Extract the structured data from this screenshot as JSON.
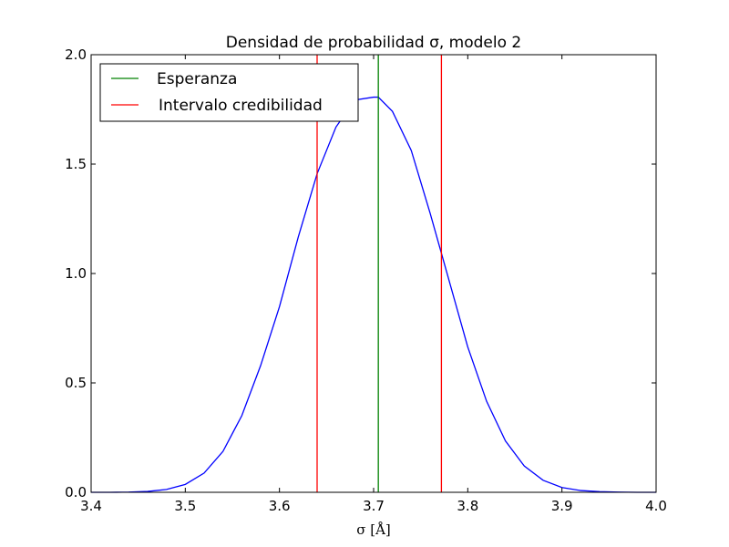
{
  "chart_data": {
    "type": "line",
    "title": "Densidad de probabilidad σ, modelo 2",
    "xlabel": "σ [Å]",
    "ylabel": "",
    "xlim": [
      3.4,
      4.0
    ],
    "ylim": [
      0.0,
      2.0
    ],
    "x_ticks": [
      "3.4",
      "3.5",
      "3.6",
      "3.7",
      "3.8",
      "3.9",
      "4.0"
    ],
    "y_ticks": [
      "0.0",
      "0.5",
      "1.0",
      "1.5",
      "2.0"
    ],
    "grid": false,
    "legend_position": "top-left",
    "density": {
      "color": "#0000ff",
      "x": [
        3.4,
        3.42,
        3.44,
        3.46,
        3.48,
        3.5,
        3.52,
        3.54,
        3.56,
        3.58,
        3.6,
        3.62,
        3.64,
        3.66,
        3.68,
        3.7,
        3.705,
        3.72,
        3.74,
        3.76,
        3.78,
        3.8,
        3.82,
        3.84,
        3.86,
        3.88,
        3.9,
        3.92,
        3.94,
        3.96,
        3.98,
        4.0
      ],
      "y": [
        0.0,
        0.0,
        0.001,
        0.004,
        0.013,
        0.036,
        0.088,
        0.187,
        0.35,
        0.579,
        0.848,
        1.167,
        1.456,
        1.669,
        1.793,
        1.806,
        1.806,
        1.741,
        1.562,
        1.276,
        0.97,
        0.664,
        0.416,
        0.235,
        0.12,
        0.055,
        0.022,
        0.008,
        0.003,
        0.001,
        0.0,
        0.0
      ]
    },
    "series": [
      {
        "name": "Esperanza",
        "color": "#008000",
        "x_values": [
          3.705
        ]
      },
      {
        "name": "Intervalo credibilidad",
        "color": "#ff0000",
        "x_values": [
          3.64,
          3.772
        ]
      }
    ]
  }
}
